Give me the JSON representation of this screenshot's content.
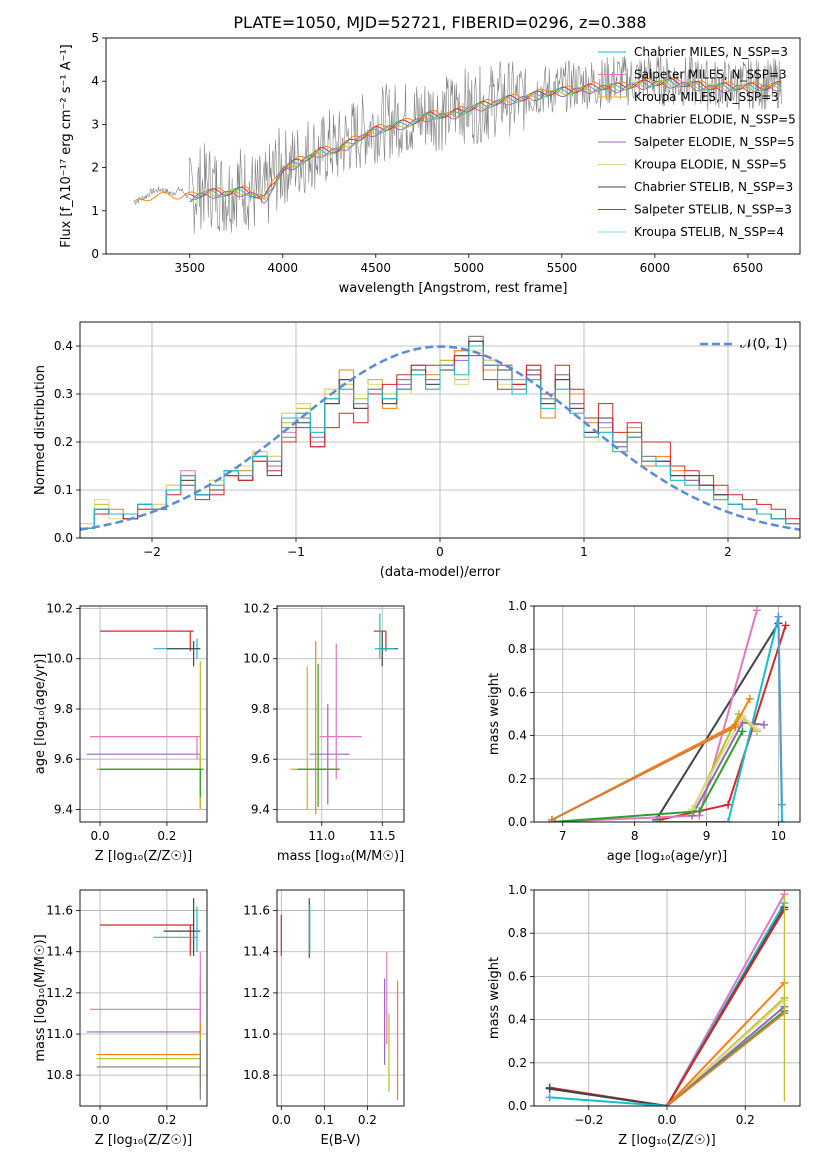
{
  "title": "PLATE=1050, MJD=52721, FIBERID=0296, z=0.388",
  "colors": [
    "#808080",
    "#ff7f0e",
    "#2ca02c",
    "#1f77b4",
    "#9467bd",
    "#bcbd22",
    "#444444",
    "#d62728",
    "#17becf",
    "#e377c2",
    "#ffa500",
    "#dbdb8d"
  ],
  "chart_data": [
    {
      "type": "line",
      "xlabel": "wavelength [Angstrom, rest frame]",
      "ylabel": "Flux [f_λ10⁻¹⁷ erg cm⁻² s⁻¹ A⁻¹]",
      "xlim": [
        3050,
        6780
      ],
      "ylim": [
        0,
        5
      ],
      "xticks": [
        "3500",
        "4000",
        "4500",
        "5000",
        "5500",
        "6000",
        "6500"
      ],
      "yticks": [
        "0",
        "1",
        "2",
        "3",
        "4",
        "5"
      ],
      "legend_position": "top-right",
      "legend": [
        "Chabrier MILES, N_SSP=3",
        "Salpeter MILES, N_SSP=3",
        "Kroupa MILES, N_SSP=3",
        "Chabrier ELODIE, N_SSP=5",
        "Salpeter ELODIE, N_SSP=5",
        "Kroupa ELODIE, N_SSP=5",
        "Chabrier STELIB, N_SSP=3",
        "Salpeter STELIB, N_SSP=3",
        "Kroupa STELIB, N_SSP=4"
      ],
      "legend_colors": [
        "#17becf",
        "#e377c2",
        "#ffa500",
        "#444444",
        "#9467bd",
        "#dbdb8d",
        "#444444",
        "#d62728",
        "#7fd8e8"
      ],
      "data_series": {
        "name": "data",
        "x": [
          3200,
          3250,
          3300,
          3350,
          3400,
          3450,
          3500,
          3550,
          3600,
          3650,
          3700,
          3750,
          3800,
          3850,
          3900,
          3950,
          4000,
          4050,
          4100,
          4150,
          4200,
          4250,
          4300,
          4350,
          4400,
          4450,
          4500,
          4550,
          4600,
          4650,
          4700,
          4750,
          4800,
          4850,
          4900,
          4950,
          5000,
          5050,
          5100,
          5150,
          5200,
          5250,
          5300,
          5350,
          5400,
          5450,
          5500,
          5550,
          5600,
          5650,
          5700,
          5750,
          5800,
          5850,
          5900,
          5950,
          6000,
          6050,
          6100,
          6150,
          6200,
          6250,
          6300,
          6350,
          6400,
          6450,
          6500,
          6550,
          6600,
          6650
        ],
        "y": [
          1.2,
          1.3,
          1.45,
          1.5,
          1.4,
          1.5,
          1.3,
          1.55,
          1.6,
          1.5,
          1.4,
          1.6,
          1.55,
          1.4,
          1.3,
          1.85,
          2.0,
          2.1,
          2.2,
          2.4,
          2.3,
          2.5,
          2.45,
          2.7,
          2.75,
          2.9,
          3.0,
          3.05,
          3.1,
          3.15,
          3.15,
          3.2,
          3.3,
          3.25,
          3.3,
          3.5,
          3.4,
          3.45,
          3.5,
          3.6,
          3.65,
          3.55,
          3.7,
          3.75,
          3.8,
          3.8,
          3.85,
          3.9,
          3.95,
          3.95,
          3.95,
          4.0,
          4.1,
          4.0,
          4.05,
          4.1,
          4.05,
          4.0,
          4.0,
          4.0,
          4.0,
          3.95,
          3.9,
          3.95,
          3.9,
          3.9,
          3.95,
          3.95,
          3.9,
          3.95
        ]
      },
      "model_series": {
        "name": "model",
        "x": [
          3200,
          3300,
          3400,
          3500,
          3600,
          3700,
          3800,
          3900,
          4000,
          4100,
          4200,
          4300,
          4400,
          4500,
          4600,
          4700,
          4800,
          4900,
          5000,
          5100,
          5200,
          5300,
          5400,
          5500,
          5600,
          5700,
          5800,
          5900,
          6000,
          6100,
          6200,
          6300,
          6400,
          6500,
          6600,
          6700
        ],
        "y": [
          1.15,
          1.35,
          1.35,
          1.35,
          1.45,
          1.45,
          1.5,
          1.3,
          2.0,
          2.2,
          2.4,
          2.45,
          2.7,
          2.9,
          3.0,
          3.1,
          3.25,
          3.25,
          3.4,
          3.5,
          3.6,
          3.65,
          3.75,
          3.8,
          3.85,
          3.9,
          3.9,
          3.95,
          4.0,
          4.0,
          3.95,
          3.9,
          3.9,
          3.9,
          3.9,
          3.95
        ]
      }
    },
    {
      "type": "line",
      "xlabel": "(data-model)/error",
      "ylabel": "Normed distribution",
      "xlim": [
        -2.5,
        2.5
      ],
      "ylim": [
        0,
        0.45
      ],
      "xticks": [
        "−2",
        "−1",
        "0",
        "1",
        "2"
      ],
      "yticks": [
        "0.0",
        "0.1",
        "0.2",
        "0.3",
        "0.4"
      ],
      "legend": [
        "𝒩(0, 1)"
      ],
      "legend_position": "top-right",
      "hist_bins": [
        -2.5,
        -2.4,
        -2.3,
        -2.2,
        -2.1,
        -2.0,
        -1.9,
        -1.8,
        -1.7,
        -1.6,
        -1.5,
        -1.4,
        -1.3,
        -1.2,
        -1.1,
        -1.0,
        -0.9,
        -0.8,
        -0.7,
        -0.6,
        -0.5,
        -0.4,
        -0.3,
        -0.2,
        -0.1,
        0.0,
        0.1,
        0.2,
        0.3,
        0.4,
        0.5,
        0.6,
        0.7,
        0.8,
        0.9,
        1.0,
        1.1,
        1.2,
        1.3,
        1.4,
        1.5,
        1.6,
        1.7,
        1.8,
        1.9,
        2.0,
        2.1,
        2.2,
        2.3,
        2.4,
        2.5
      ],
      "hist_series": [
        {
          "values": [
            0.02,
            0.06,
            0.05,
            0.04,
            0.07,
            0.06,
            0.11,
            0.14,
            0.09,
            0.1,
            0.14,
            0.12,
            0.16,
            0.15,
            0.22,
            0.25,
            0.2,
            0.28,
            0.33,
            0.27,
            0.3,
            0.29,
            0.33,
            0.36,
            0.33,
            0.36,
            0.39,
            0.42,
            0.37,
            0.36,
            0.31,
            0.34,
            0.29,
            0.34,
            0.28,
            0.22,
            0.25,
            0.2,
            0.22,
            0.17,
            0.16,
            0.13,
            0.13,
            0.11,
            0.09,
            0.07,
            0.06,
            0.05,
            0.04,
            0.03
          ]
        },
        {
          "values": [
            0.02,
            0.05,
            0.06,
            0.04,
            0.06,
            0.07,
            0.1,
            0.12,
            0.1,
            0.11,
            0.13,
            0.14,
            0.18,
            0.17,
            0.26,
            0.28,
            0.23,
            0.31,
            0.35,
            0.3,
            0.31,
            0.27,
            0.3,
            0.35,
            0.34,
            0.37,
            0.39,
            0.41,
            0.35,
            0.36,
            0.33,
            0.36,
            0.25,
            0.33,
            0.3,
            0.24,
            0.22,
            0.19,
            0.23,
            0.15,
            0.17,
            0.14,
            0.12,
            0.1,
            0.08,
            0.07,
            0.06,
            0.05,
            0.04,
            0.03
          ]
        },
        {
          "values": [
            0.03,
            0.07,
            0.05,
            0.05,
            0.07,
            0.06,
            0.11,
            0.13,
            0.09,
            0.12,
            0.13,
            0.15,
            0.17,
            0.16,
            0.24,
            0.27,
            0.22,
            0.3,
            0.31,
            0.29,
            0.33,
            0.3,
            0.31,
            0.34,
            0.31,
            0.37,
            0.33,
            0.4,
            0.36,
            0.33,
            0.31,
            0.33,
            0.28,
            0.31,
            0.27,
            0.21,
            0.23,
            0.18,
            0.22,
            0.16,
            0.15,
            0.12,
            0.12,
            0.1,
            0.08,
            0.07,
            0.06,
            0.05,
            0.04,
            0.03
          ]
        },
        {
          "values": [
            0.02,
            0.06,
            0.05,
            0.04,
            0.07,
            0.06,
            0.1,
            0.13,
            0.09,
            0.1,
            0.14,
            0.12,
            0.16,
            0.15,
            0.21,
            0.25,
            0.2,
            0.28,
            0.33,
            0.27,
            0.3,
            0.29,
            0.33,
            0.36,
            0.33,
            0.36,
            0.38,
            0.42,
            0.37,
            0.36,
            0.31,
            0.34,
            0.29,
            0.34,
            0.28,
            0.22,
            0.25,
            0.2,
            0.22,
            0.17,
            0.16,
            0.13,
            0.13,
            0.11,
            0.09,
            0.07,
            0.06,
            0.05,
            0.04,
            0.03
          ]
        },
        {
          "values": [
            0.02,
            0.05,
            0.05,
            0.04,
            0.07,
            0.06,
            0.1,
            0.13,
            0.1,
            0.1,
            0.14,
            0.13,
            0.17,
            0.16,
            0.23,
            0.26,
            0.21,
            0.29,
            0.32,
            0.28,
            0.31,
            0.28,
            0.32,
            0.35,
            0.32,
            0.36,
            0.37,
            0.41,
            0.36,
            0.35,
            0.32,
            0.34,
            0.28,
            0.33,
            0.28,
            0.22,
            0.24,
            0.19,
            0.21,
            0.16,
            0.16,
            0.13,
            0.12,
            0.11,
            0.09,
            0.07,
            0.06,
            0.05,
            0.04,
            0.03
          ]
        },
        {
          "values": [
            0.03,
            0.08,
            0.04,
            0.05,
            0.06,
            0.07,
            0.11,
            0.12,
            0.1,
            0.12,
            0.13,
            0.15,
            0.18,
            0.17,
            0.26,
            0.28,
            0.22,
            0.31,
            0.32,
            0.3,
            0.32,
            0.28,
            0.3,
            0.34,
            0.32,
            0.36,
            0.32,
            0.39,
            0.37,
            0.32,
            0.3,
            0.33,
            0.27,
            0.3,
            0.26,
            0.2,
            0.22,
            0.18,
            0.21,
            0.16,
            0.15,
            0.12,
            0.11,
            0.1,
            0.08,
            0.07,
            0.06,
            0.05,
            0.04,
            0.03
          ]
        },
        {
          "values": [
            0.02,
            0.06,
            0.05,
            0.04,
            0.07,
            0.06,
            0.1,
            0.12,
            0.09,
            0.1,
            0.13,
            0.12,
            0.17,
            0.13,
            0.2,
            0.24,
            0.19,
            0.28,
            0.33,
            0.27,
            0.3,
            0.28,
            0.31,
            0.35,
            0.32,
            0.35,
            0.38,
            0.41,
            0.36,
            0.35,
            0.32,
            0.35,
            0.28,
            0.33,
            0.27,
            0.22,
            0.25,
            0.2,
            0.21,
            0.16,
            0.16,
            0.13,
            0.13,
            0.11,
            0.09,
            0.07,
            0.06,
            0.05,
            0.04,
            0.03
          ]
        },
        {
          "values": [
            0.02,
            0.05,
            0.05,
            0.04,
            0.06,
            0.06,
            0.09,
            0.11,
            0.08,
            0.09,
            0.13,
            0.12,
            0.16,
            0.14,
            0.2,
            0.23,
            0.19,
            0.23,
            0.26,
            0.24,
            0.3,
            0.32,
            0.34,
            0.36,
            0.36,
            0.36,
            0.38,
            0.38,
            0.33,
            0.31,
            0.32,
            0.36,
            0.3,
            0.36,
            0.31,
            0.25,
            0.28,
            0.22,
            0.24,
            0.2,
            0.2,
            0.15,
            0.14,
            0.13,
            0.11,
            0.09,
            0.08,
            0.07,
            0.06,
            0.04
          ]
        },
        {
          "values": [
            0.02,
            0.06,
            0.05,
            0.05,
            0.07,
            0.06,
            0.1,
            0.13,
            0.09,
            0.11,
            0.14,
            0.13,
            0.17,
            0.16,
            0.25,
            0.26,
            0.22,
            0.29,
            0.31,
            0.28,
            0.31,
            0.29,
            0.31,
            0.34,
            0.31,
            0.36,
            0.34,
            0.4,
            0.36,
            0.33,
            0.3,
            0.33,
            0.27,
            0.31,
            0.26,
            0.21,
            0.22,
            0.18,
            0.21,
            0.16,
            0.15,
            0.12,
            0.11,
            0.1,
            0.08,
            0.07,
            0.06,
            0.05,
            0.04,
            0.03
          ]
        }
      ],
      "hist_colors": [
        "#e377c2",
        "#ff7f0e",
        "#bcbd22",
        "#808080",
        "#9467bd",
        "#dbdb8d",
        "#444444",
        "#d62728",
        "#17becf"
      ]
    },
    {
      "type": "scatter",
      "xlabel": "Z [log₁₀(Z/Z☉)]",
      "ylabel": "age  [log₁₀(age/yr)]",
      "xlim": [
        -0.06,
        0.32
      ],
      "ylim": [
        9.35,
        10.21
      ],
      "xticks": [
        "0.0",
        "0.2"
      ],
      "yticks": [
        "9.4",
        "9.6",
        "9.8",
        "10.0",
        "10.2"
      ]
    },
    {
      "type": "scatter",
      "xlabel": "mass [log₁₀(M/M☉)]",
      "ylabel": "",
      "xlim": [
        10.63,
        11.68
      ],
      "ylim": [
        9.35,
        10.21
      ],
      "xticks": [
        "11.0",
        "11.5"
      ],
      "yticks": [
        "9.4",
        "9.6",
        "9.8",
        "10.0",
        "10.2"
      ]
    },
    {
      "type": "line",
      "xlabel": "age  [log₁₀(age/yr)]",
      "ylabel": "mass weight",
      "xlim": [
        6.6,
        10.3
      ],
      "ylim": [
        0,
        1.0
      ],
      "xticks": [
        "7",
        "8",
        "9",
        "10"
      ],
      "yticks": [
        "0.0",
        "0.2",
        "0.4",
        "0.6",
        "0.8",
        "1.0"
      ]
    },
    {
      "type": "scatter",
      "xlabel": "Z [log₁₀(Z/Z☉)]",
      "ylabel": "mass [log₁₀(M/M☉)]",
      "xlim": [
        -0.06,
        0.32
      ],
      "ylim": [
        10.65,
        11.7
      ],
      "xticks": [
        "0.0",
        "0.2"
      ],
      "yticks": [
        "10.8",
        "11.0",
        "11.2",
        "11.4",
        "11.6"
      ]
    },
    {
      "type": "scatter",
      "xlabel": "E(B-V)",
      "ylabel": "",
      "xlim": [
        -0.01,
        0.285
      ],
      "ylim": [
        10.65,
        11.7
      ],
      "xticks": [
        "0.0",
        "0.1",
        "0.2"
      ],
      "yticks": [
        "10.8",
        "11.0",
        "11.2",
        "11.4",
        "11.6"
      ]
    },
    {
      "type": "line",
      "xlabel": "Z [log₁₀(Z/Z☉)]",
      "ylabel": "mass weight",
      "xlim": [
        -0.34,
        0.34
      ],
      "ylim": [
        0,
        1.0
      ],
      "xticks": [
        "−0.2",
        "0.0",
        "0.2"
      ],
      "yticks": [
        "0.0",
        "0.2",
        "0.4",
        "0.6",
        "0.8",
        "1.0"
      ]
    }
  ]
}
